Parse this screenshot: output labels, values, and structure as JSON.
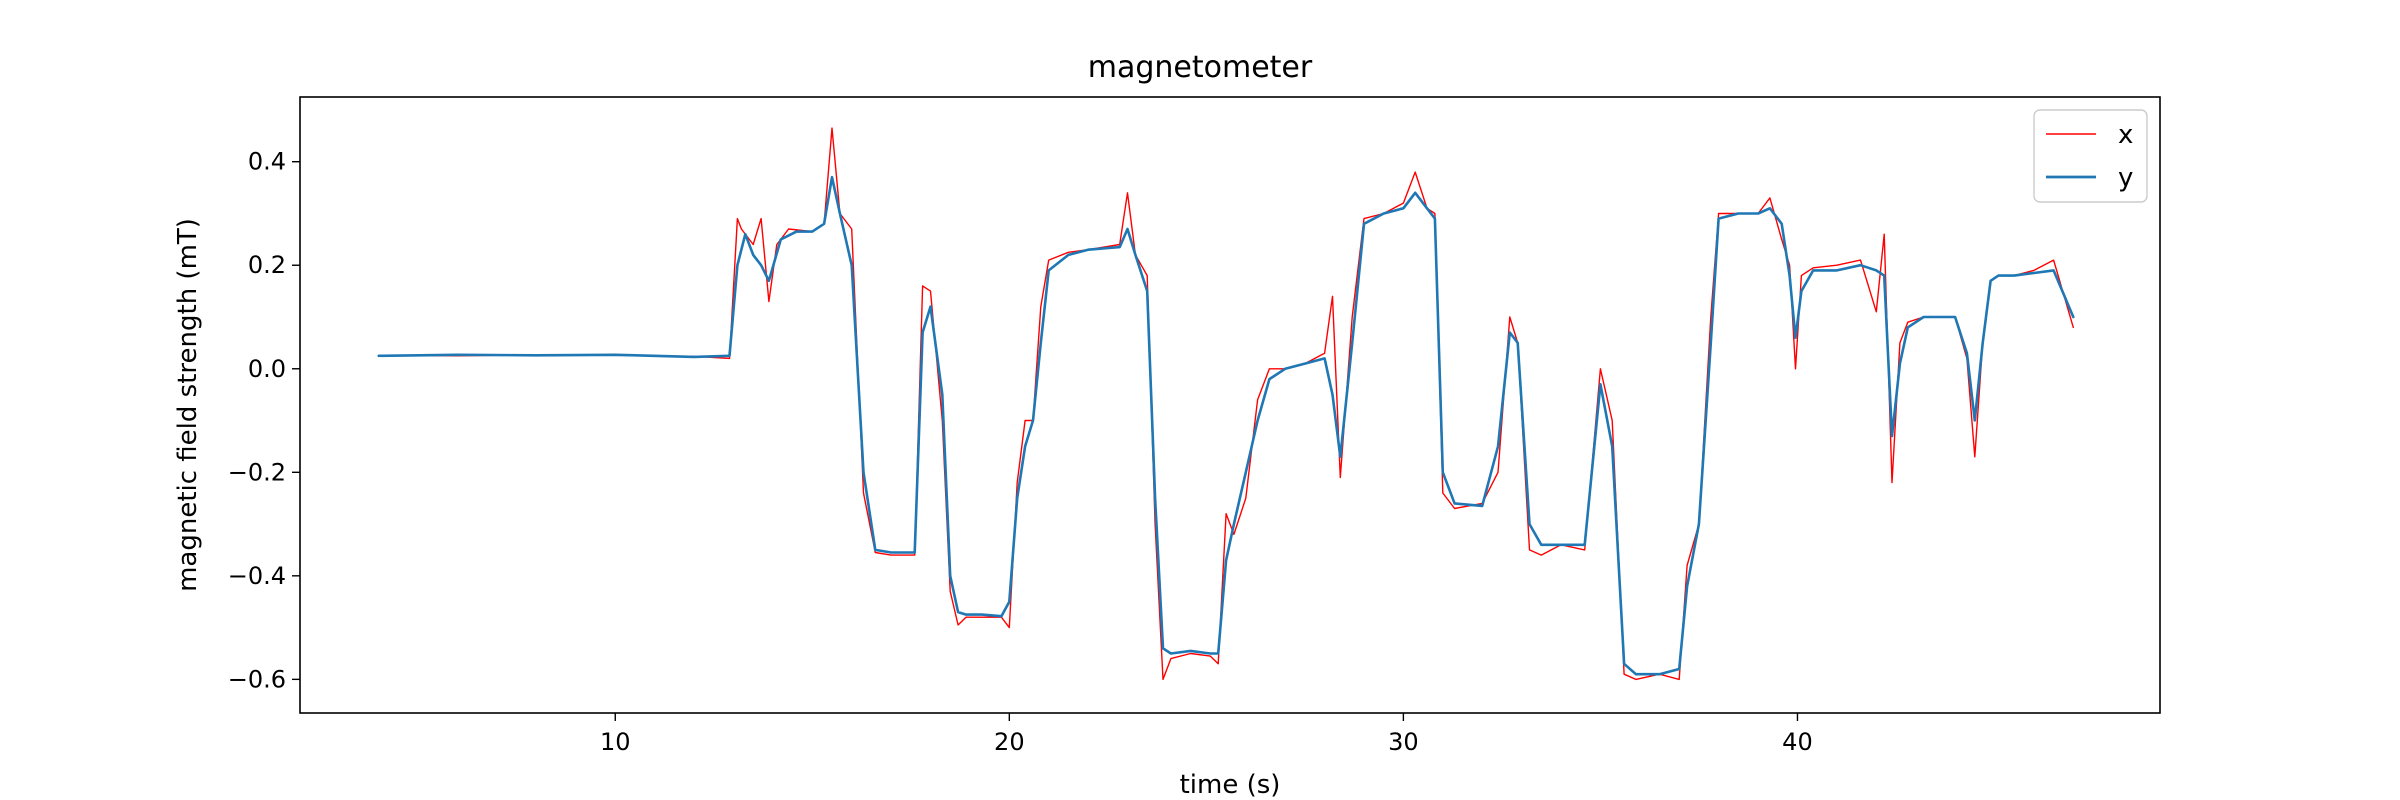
{
  "chart_data": {
    "type": "line",
    "title": "magnetometer",
    "xlabel": "time (s)",
    "ylabel": "magnetic field strength (mT)",
    "xlim": [
      2.0,
      49.2
    ],
    "ylim": [
      -0.665,
      0.525
    ],
    "xticks": [
      10,
      20,
      30,
      40
    ],
    "yticks": [
      -0.6,
      -0.4,
      -0.2,
      0.0,
      0.2,
      0.4
    ],
    "ytick_labels": [
      "−0.6",
      "−0.4",
      "−0.2",
      "0.0",
      "0.2",
      "0.4"
    ],
    "grid": false,
    "legend_position": "top-right",
    "series": [
      {
        "name": "x",
        "color": "#ff0000",
        "x": [
          4.0,
          6.0,
          8.0,
          10.0,
          12.0,
          12.9,
          13.1,
          13.2,
          13.5,
          13.7,
          13.9,
          14.1,
          14.4,
          15.0,
          15.3,
          15.5,
          15.7,
          16.0,
          16.3,
          16.6,
          17.0,
          17.6,
          17.8,
          18.0,
          18.3,
          18.5,
          18.7,
          18.9,
          19.3,
          19.8,
          20.0,
          20.2,
          20.4,
          20.6,
          20.8,
          21.0,
          21.5,
          22.0,
          22.8,
          23.0,
          23.2,
          23.5,
          23.7,
          23.9,
          24.1,
          24.6,
          25.1,
          25.3,
          25.5,
          25.7,
          26.0,
          26.3,
          26.6,
          27.0,
          27.5,
          28.0,
          28.2,
          28.4,
          28.7,
          29.0,
          29.5,
          30.0,
          30.3,
          30.6,
          30.8,
          31.0,
          31.3,
          32.0,
          32.4,
          32.7,
          32.9,
          33.2,
          33.5,
          34.0,
          34.6,
          35.0,
          35.3,
          35.6,
          35.9,
          36.5,
          37.0,
          37.2,
          37.5,
          37.8,
          38.0,
          38.5,
          39.0,
          39.3,
          39.6,
          39.8,
          39.95,
          40.1,
          40.4,
          41.0,
          41.6,
          42.0,
          42.2,
          42.4,
          42.6,
          42.8,
          43.2,
          43.6,
          44.0,
          44.3,
          44.5,
          44.7,
          44.9,
          45.1,
          45.5,
          46.0,
          46.5,
          47.0
        ],
        "y": [
          0.026,
          0.025,
          0.027,
          0.026,
          0.024,
          0.02,
          0.29,
          0.27,
          0.24,
          0.29,
          0.13,
          0.24,
          0.27,
          0.265,
          0.28,
          0.465,
          0.3,
          0.27,
          -0.24,
          -0.355,
          -0.36,
          -0.36,
          0.16,
          0.15,
          -0.1,
          -0.43,
          -0.495,
          -0.48,
          -0.48,
          -0.48,
          -0.5,
          -0.22,
          -0.1,
          -0.1,
          0.12,
          0.21,
          0.225,
          0.23,
          0.24,
          0.34,
          0.22,
          0.18,
          -0.3,
          -0.6,
          -0.56,
          -0.55,
          -0.555,
          -0.57,
          -0.28,
          -0.32,
          -0.25,
          -0.06,
          0.0,
          0.0,
          0.01,
          0.03,
          0.14,
          -0.21,
          0.1,
          0.29,
          0.3,
          0.32,
          0.38,
          0.31,
          0.3,
          -0.24,
          -0.27,
          -0.26,
          -0.2,
          0.1,
          0.05,
          -0.35,
          -0.36,
          -0.34,
          -0.35,
          0.0,
          -0.1,
          -0.59,
          -0.6,
          -0.59,
          -0.6,
          -0.38,
          -0.3,
          0.1,
          0.3,
          0.3,
          0.3,
          0.33,
          0.25,
          0.2,
          -0.0,
          0.18,
          0.195,
          0.2,
          0.21,
          0.11,
          0.26,
          -0.22,
          0.05,
          0.09,
          0.1,
          0.1,
          0.1,
          0.02,
          -0.17,
          0.05,
          0.17,
          0.18,
          0.18,
          0.19,
          0.21,
          0.08
        ]
      },
      {
        "name": "y",
        "color": "#1f77b4",
        "x": [
          4.0,
          6.0,
          8.0,
          10.0,
          12.0,
          12.9,
          13.1,
          13.3,
          13.5,
          13.7,
          13.9,
          14.2,
          14.6,
          15.0,
          15.3,
          15.5,
          15.7,
          16.0,
          16.3,
          16.6,
          17.0,
          17.6,
          17.8,
          18.0,
          18.3,
          18.5,
          18.7,
          18.9,
          19.3,
          19.8,
          20.0,
          20.2,
          20.4,
          20.6,
          20.8,
          21.0,
          21.5,
          22.0,
          22.8,
          23.0,
          23.2,
          23.5,
          23.7,
          23.9,
          24.1,
          24.6,
          25.1,
          25.3,
          25.5,
          25.7,
          26.0,
          26.3,
          26.6,
          27.0,
          27.5,
          28.0,
          28.2,
          28.4,
          28.7,
          29.0,
          29.5,
          30.0,
          30.3,
          30.6,
          30.8,
          31.0,
          31.3,
          32.0,
          32.4,
          32.7,
          32.9,
          33.2,
          33.5,
          34.0,
          34.6,
          35.0,
          35.3,
          35.6,
          35.9,
          36.5,
          37.0,
          37.2,
          37.5,
          37.8,
          38.0,
          38.5,
          39.0,
          39.3,
          39.6,
          39.8,
          39.95,
          40.1,
          40.4,
          41.0,
          41.6,
          42.0,
          42.2,
          42.4,
          42.6,
          42.8,
          43.2,
          43.6,
          44.0,
          44.3,
          44.5,
          44.7,
          44.9,
          45.1,
          45.5,
          46.0,
          46.5,
          47.0
        ],
        "y": [
          0.025,
          0.027,
          0.026,
          0.027,
          0.023,
          0.025,
          0.2,
          0.26,
          0.22,
          0.2,
          0.17,
          0.25,
          0.265,
          0.265,
          0.28,
          0.37,
          0.3,
          0.2,
          -0.2,
          -0.35,
          -0.355,
          -0.355,
          0.07,
          0.12,
          -0.05,
          -0.4,
          -0.47,
          -0.475,
          -0.475,
          -0.478,
          -0.45,
          -0.25,
          -0.15,
          -0.1,
          0.05,
          0.19,
          0.22,
          0.23,
          0.235,
          0.27,
          0.22,
          0.15,
          -0.25,
          -0.54,
          -0.55,
          -0.545,
          -0.55,
          -0.55,
          -0.37,
          -0.3,
          -0.2,
          -0.1,
          -0.02,
          0.0,
          0.01,
          0.02,
          -0.05,
          -0.17,
          0.05,
          0.28,
          0.3,
          0.31,
          0.34,
          0.31,
          0.29,
          -0.2,
          -0.26,
          -0.265,
          -0.15,
          0.07,
          0.05,
          -0.3,
          -0.34,
          -0.34,
          -0.34,
          -0.03,
          -0.15,
          -0.57,
          -0.59,
          -0.59,
          -0.58,
          -0.42,
          -0.3,
          0.05,
          0.29,
          0.3,
          0.3,
          0.31,
          0.28,
          0.18,
          0.06,
          0.15,
          0.19,
          0.19,
          0.2,
          0.19,
          0.18,
          -0.13,
          0.01,
          0.08,
          0.1,
          0.1,
          0.1,
          0.03,
          -0.1,
          0.05,
          0.17,
          0.18,
          0.18,
          0.185,
          0.19,
          0.1
        ]
      }
    ]
  }
}
